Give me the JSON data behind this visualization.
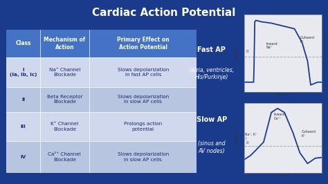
{
  "title": "Cardiac Action Potential",
  "bg_color": "#1a3a8c",
  "title_color": "white",
  "title_fontsize": 11,
  "table_header_bg": "#4472c4",
  "table_header_color": "white",
  "table_row_bg_light": "#d0d8ee",
  "table_row_bg_dark": "#b8c5e0",
  "table_text_color": "#1a2a6c",
  "table_header_fontsize": 5.5,
  "table_body_fontsize": 5.2,
  "headers": [
    "Class",
    "Mechanism of\nAction",
    "Primary Effect on\nAction Potential"
  ],
  "rows": [
    [
      "I\n(Ia, Ib, Ic)",
      "Na⁺ Channel\nBlockade",
      "Slows depolarization\nin fast AP cells"
    ],
    [
      "II",
      "Beta Receptor\nBlockade",
      "Slows depolarization\nin slow AP cells"
    ],
    [
      "III",
      "K⁺ Channel\nBlockade",
      "Prolongs action\npotential"
    ],
    [
      "IV",
      "Ca²⁺ Channel\nBlockade",
      "Slows depolarization\nin slow AP cells"
    ]
  ],
  "fast_ap_label": "Fast AP",
  "fast_ap_sublabel": "(atria, ventricles,\nHis/Purkinje)",
  "slow_ap_label": "Slow AP",
  "slow_ap_sublabel": "(sinus and\nAV nodes)",
  "label_color": "white",
  "label_fontsize": 7.0,
  "sublabel_fontsize": 5.5,
  "graph_bg": "#e8eaf0",
  "graph_line_color": "#1a3a8c",
  "graph_dashed_color": "#aaaaaa"
}
